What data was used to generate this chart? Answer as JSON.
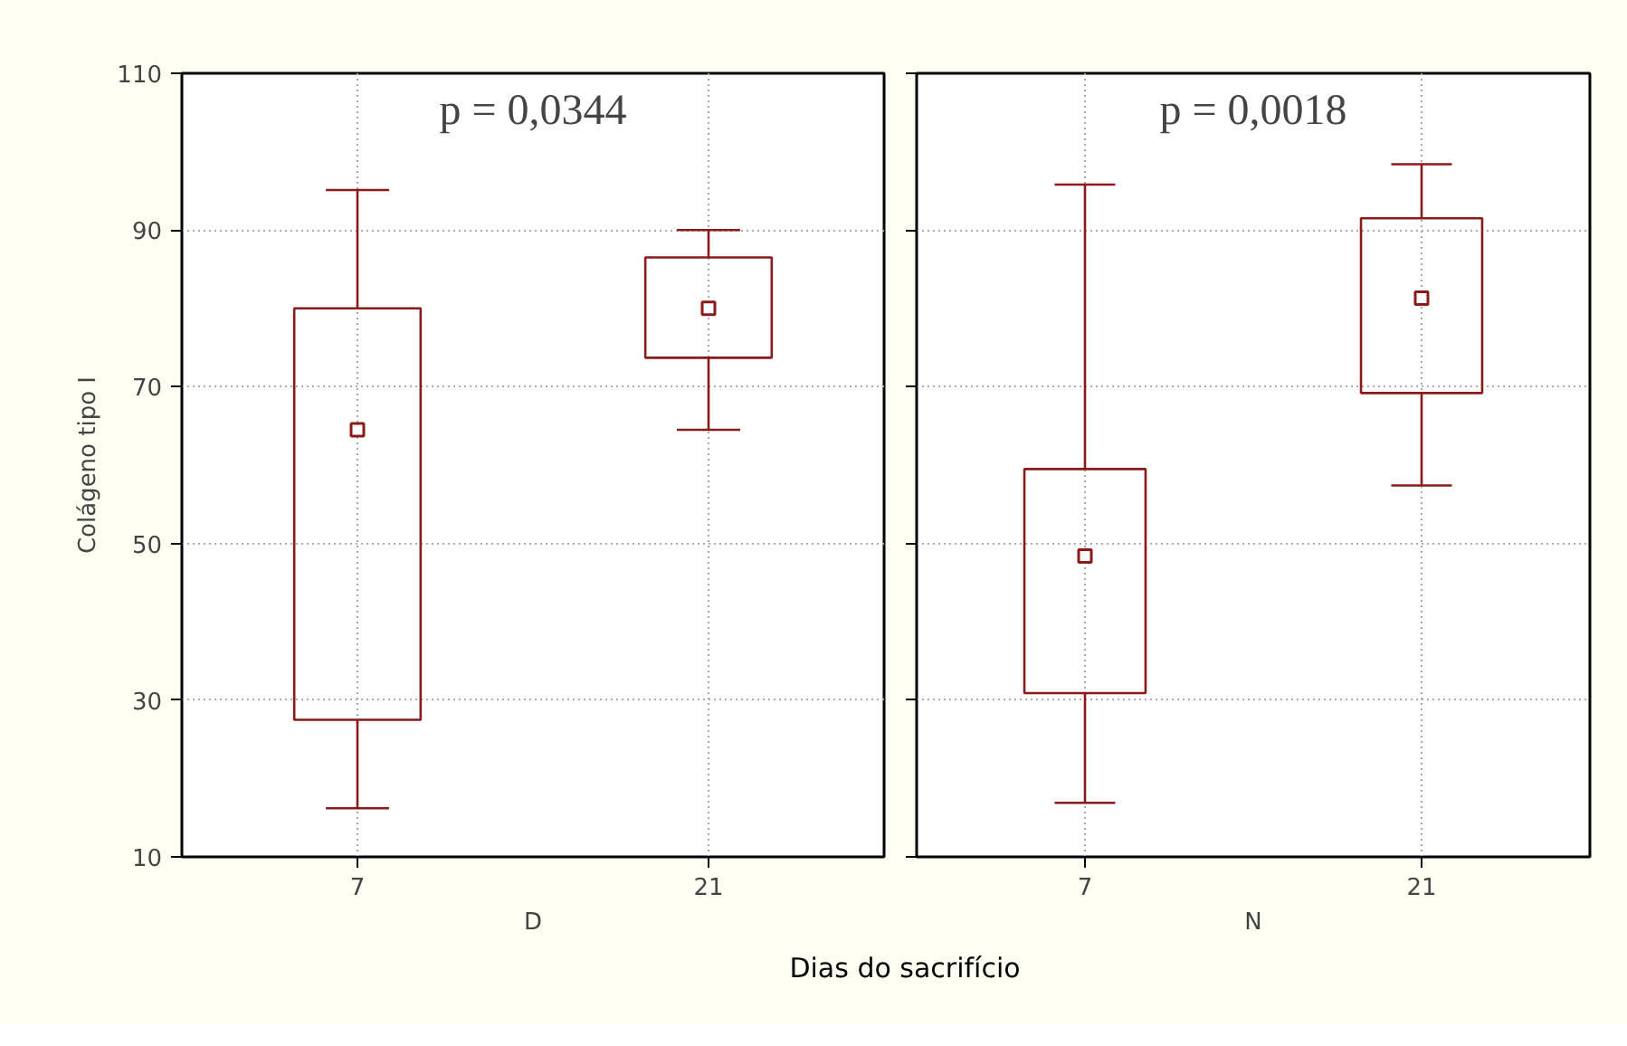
{
  "chart_data": [
    {
      "type": "box",
      "xlabel": "D",
      "ylabel": "Colágeno tipo I",
      "categories": [
        "7",
        "21"
      ],
      "color": "#8b1a1a",
      "marker": "square",
      "boxes": [
        {
          "low": 16.2,
          "q1": 27.5,
          "median": 64.5,
          "q3": 80,
          "high": 95.1
        },
        {
          "low": 64.5,
          "q1": 73.7,
          "median": 80,
          "q3": 86.5,
          "high": 90
        }
      ],
      "ylim": [
        10,
        110
      ],
      "yticks": [
        10,
        30,
        50,
        70,
        90,
        110
      ],
      "grid": true,
      "annotations": [
        "p = 0,0344",
        "Dias do sacrifício"
      ]
    },
    {
      "type": "box",
      "xlabel": "N",
      "categories": [
        "7",
        "21"
      ],
      "color": "#8b1a1a",
      "marker": "square",
      "boxes": [
        {
          "low": 16.9,
          "q1": 30.9,
          "median": 48.4,
          "q3": 59.5,
          "high": 95.8
        },
        {
          "low": 57.4,
          "q1": 69.2,
          "median": 81.3,
          "q3": 91.5,
          "high": 98.4
        }
      ],
      "ylim": [
        10,
        110
      ],
      "yticks": [
        10,
        30,
        50,
        70,
        90,
        110
      ],
      "grid": true,
      "tick_labels": "x",
      "annotations": [
        "p = 0,0018"
      ]
    }
  ]
}
